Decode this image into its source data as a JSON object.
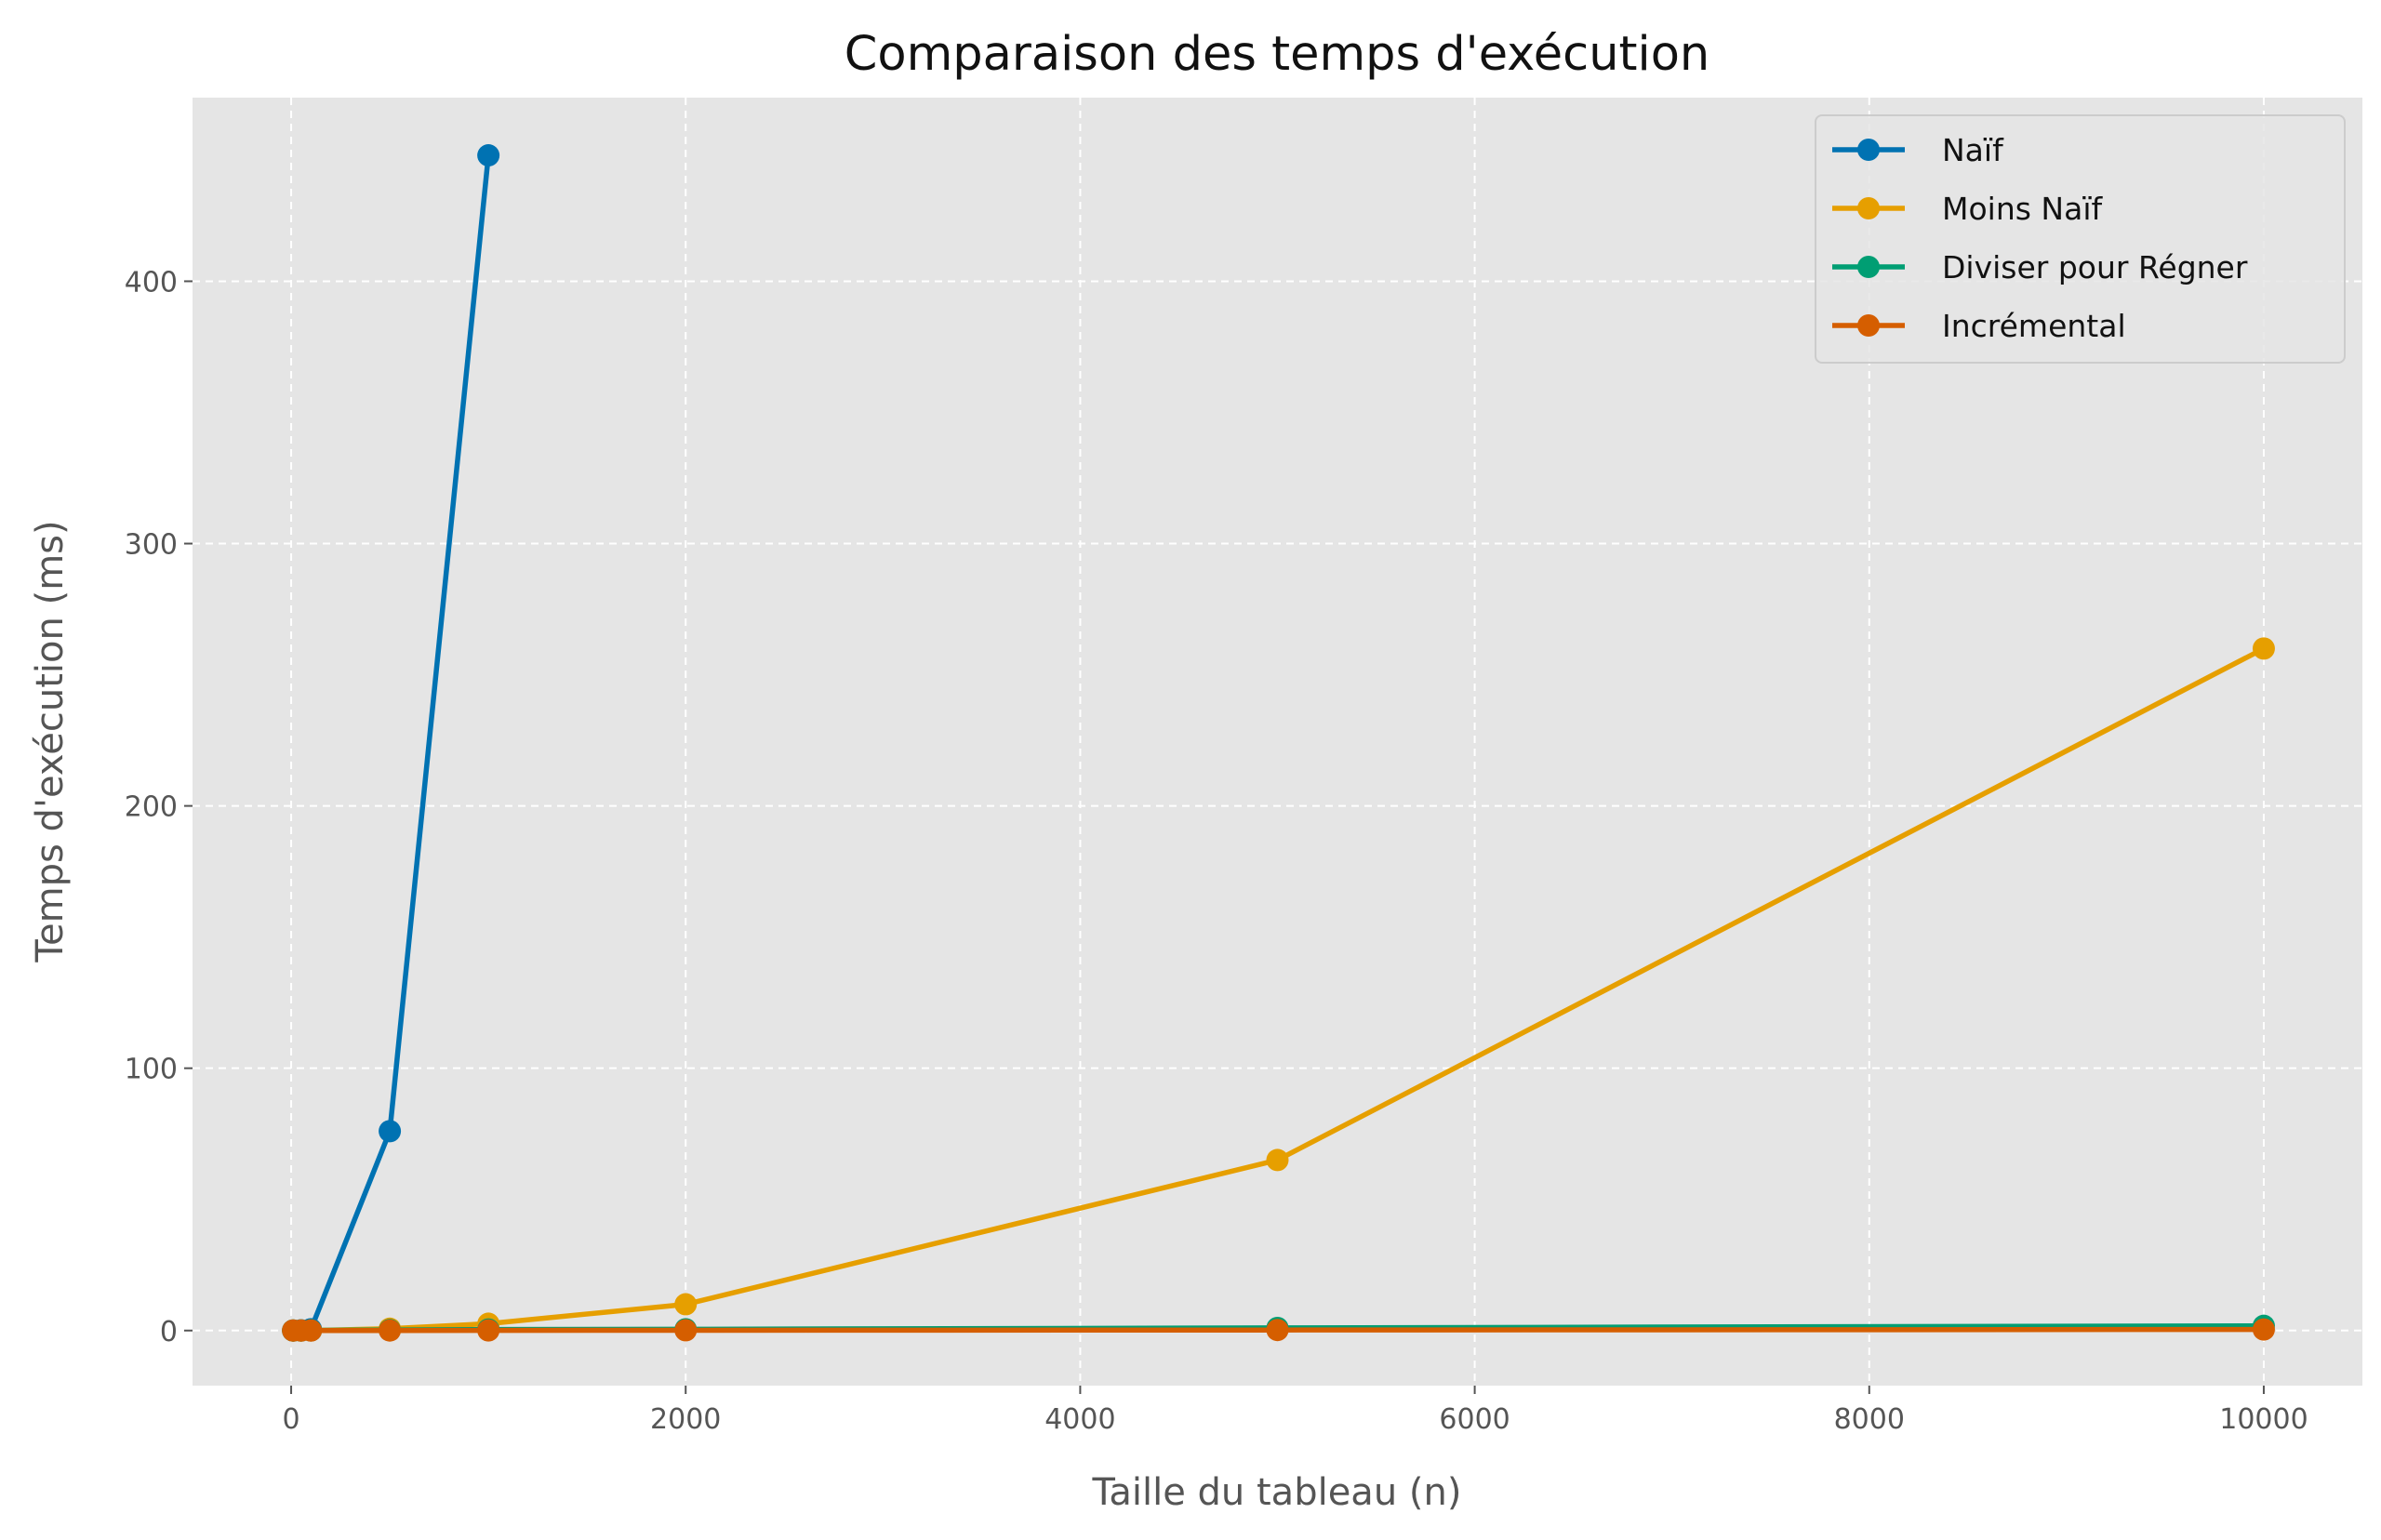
{
  "chart_data": {
    "type": "line",
    "title": "Comparaison des temps d'exécution",
    "xlabel": "Taille du tableau (n)",
    "ylabel": "Temps d'exécution (ms)",
    "xlim": [
      -500,
      10500
    ],
    "ylim": [
      -21,
      470
    ],
    "xticks": [
      0,
      2000,
      4000,
      6000,
      8000,
      10000
    ],
    "yticks": [
      0,
      100,
      200,
      300,
      400
    ],
    "grid": true,
    "legend_position": "top-right",
    "colors": {
      "plot_background": "#e5e5e5",
      "grid": "#ffffff"
    },
    "series": [
      {
        "name": "Naïf",
        "color": "#0072b2",
        "x": [
          10,
          50,
          100,
          500,
          1000
        ],
        "y": [
          0.0,
          0.1,
          0.5,
          76,
          448
        ]
      },
      {
        "name": "Moins Naïf",
        "color": "#e69f00",
        "x": [
          10,
          50,
          100,
          500,
          1000,
          2000,
          5000,
          10000
        ],
        "y": [
          0.0,
          0.0,
          0.03,
          0.7,
          2.6,
          10,
          65,
          260
        ]
      },
      {
        "name": "Diviser pour Régner",
        "color": "#009e73",
        "x": [
          10,
          50,
          100,
          500,
          1000,
          2000,
          5000,
          10000
        ],
        "y": [
          0.0,
          0.0,
          0.05,
          0.2,
          0.4,
          0.5,
          1.0,
          1.8
        ]
      },
      {
        "name": "Incrémental",
        "color": "#d55e00",
        "x": [
          10,
          50,
          100,
          500,
          1000,
          2000,
          5000,
          10000
        ],
        "y": [
          0.0,
          0.0,
          0.0,
          0.02,
          0.05,
          0.1,
          0.2,
          0.4
        ]
      }
    ]
  }
}
